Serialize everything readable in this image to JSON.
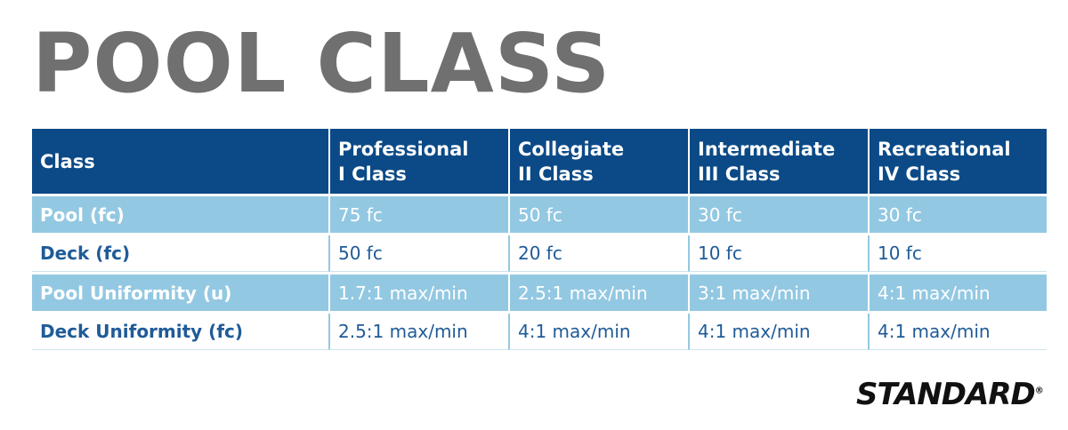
{
  "title": "POOL CLASS",
  "table": {
    "header": [
      [
        "Class"
      ],
      [
        "Professional",
        "I Class"
      ],
      [
        "Collegiate",
        "II Class"
      ],
      [
        "Intermediate",
        "III Class"
      ],
      [
        "Recreational",
        "IV Class"
      ]
    ],
    "rows": [
      [
        "Pool (fc)",
        "75 fc",
        "50 fc",
        "30 fc",
        "30 fc"
      ],
      [
        "Deck (fc)",
        "50 fc",
        "20 fc",
        "10 fc",
        "10 fc"
      ],
      [
        "Pool Uniformity (u)",
        "1.7:1 max/min",
        "2.5:1 max/min",
        "3:1 max/min",
        "4:1 max/min"
      ],
      [
        "Deck Uniformity (fc)",
        "2.5:1 max/min",
        "4:1 max/min",
        "4:1 max/min",
        "4:1 max/min"
      ]
    ]
  },
  "logo": {
    "text": "STANDARD",
    "mark": "®"
  }
}
